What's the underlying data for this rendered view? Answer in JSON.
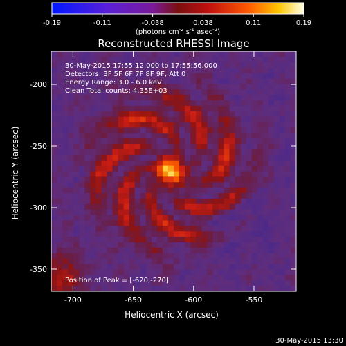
{
  "plot": {
    "title": "Reconstructed RHESSI Image",
    "xlabel": "Heliocentric X (arcsec)",
    "ylabel": "Heliocentric Y (arcsec)",
    "info_lines": [
      "30-May-2015 17:55:12.000 to 17:55:56.000",
      "Detectors: 3F 5F 6F 7F 8F 9F, Att 0",
      "Energy Range: 3.0 - 6.0 keV",
      "Clean     Total counts: 4.35E+03"
    ],
    "peak_label": "Position of Peak = [-620,-270]",
    "x_ticks": [
      "-700",
      "-650",
      "-600",
      "-550"
    ],
    "y_ticks": [
      "-200",
      "-250",
      "-300",
      "-350"
    ],
    "x_range": [
      -718,
      -515
    ],
    "y_range": [
      -368,
      -173
    ],
    "peak": {
      "x": -620,
      "y": -270
    }
  },
  "colorbar": {
    "ticks": [
      "-0.19",
      "-0.11",
      "-0.038",
      "0.038",
      "0.11",
      "0.19"
    ],
    "units_prefix": "(photons cm",
    "units_exp1": "-2",
    "units_mid": " s",
    "units_exp2": "-1",
    "units_mid2": " asec",
    "units_exp3": "-2",
    "units_suffix": ")",
    "range": [
      -0.19,
      0.19
    ]
  },
  "footer": {
    "timestamp": "30-May-2015 13:30"
  }
}
